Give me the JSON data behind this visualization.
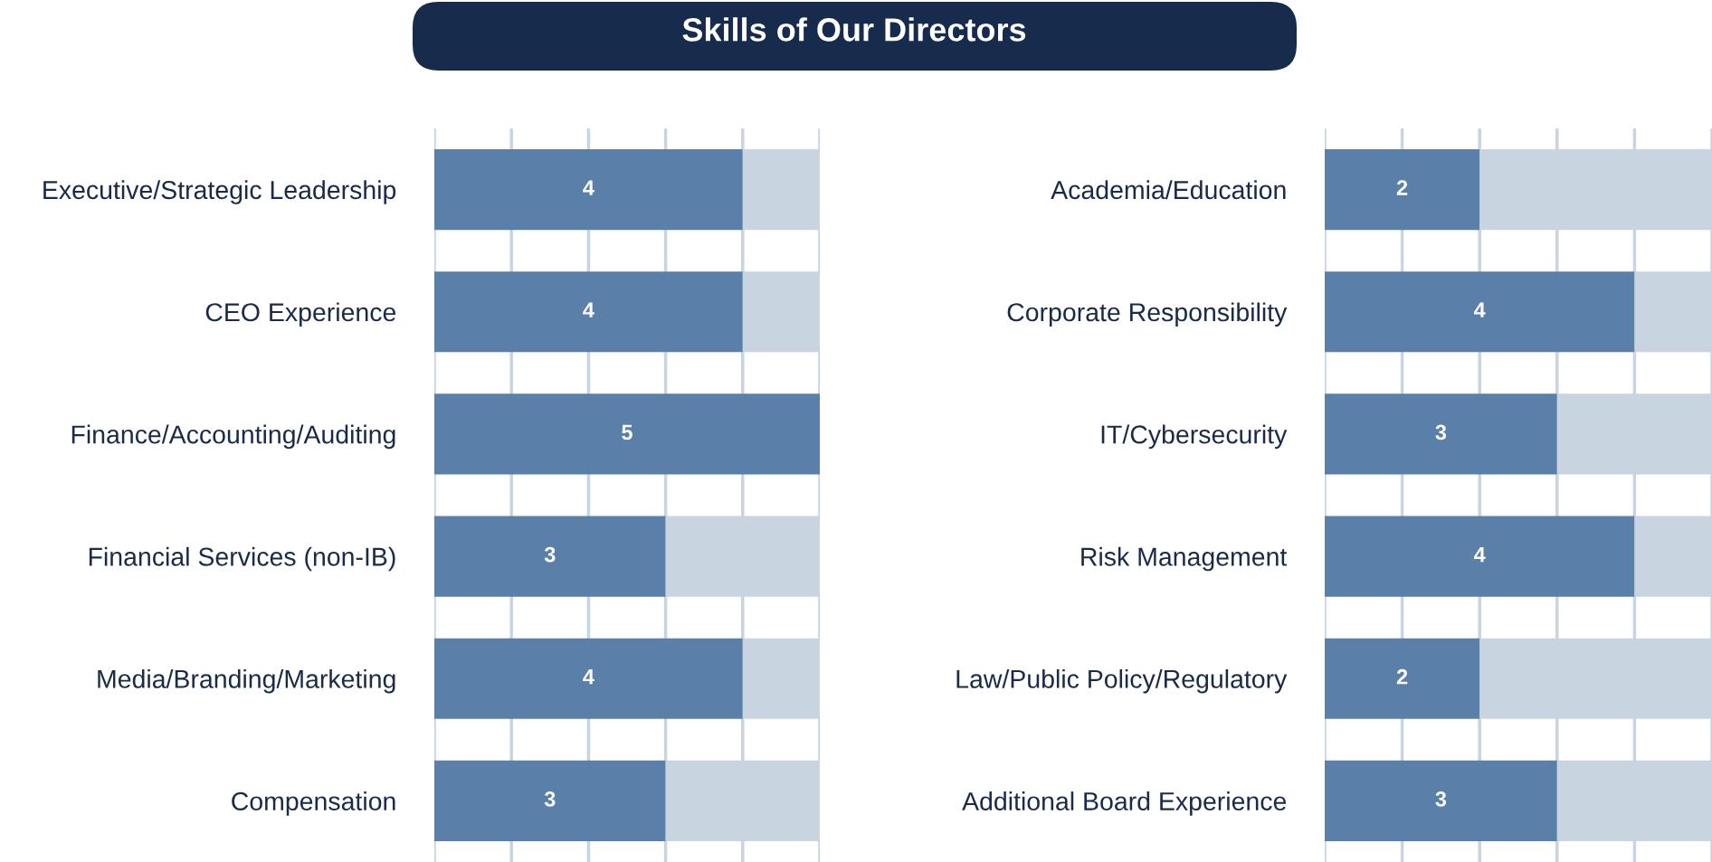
{
  "chart_data": [
    {
      "type": "bar",
      "title": "Skills of Our Directors",
      "orientation": "horizontal",
      "stacked": true,
      "categories": [
        "Executive/Strategic Leadership",
        "CEO Experience",
        "Finance/Accounting/Auditing",
        "Financial Services (non-IB)",
        "Media/Branding/Marketing",
        "Compensation"
      ],
      "series": [
        {
          "color": "#5a80aa",
          "values": [
            4,
            4,
            5,
            3,
            4,
            3
          ],
          "value_labels": [
            "4",
            "4",
            "5",
            "3",
            "4",
            "3"
          ]
        },
        {
          "color": "#c8d4e0",
          "values": [
            1,
            1,
            0,
            2,
            1,
            2
          ]
        }
      ],
      "xlim": [
        0,
        5
      ],
      "xticks": [
        {
          "value": 0,
          "label": null
        },
        {
          "value": 1,
          "label": null
        },
        {
          "value": 2,
          "label": null
        },
        {
          "value": 3,
          "label": null
        },
        {
          "value": 4,
          "label": null
        },
        {
          "value": 5,
          "label": null
        }
      ],
      "grid": "x",
      "tick_labels": "y"
    },
    {
      "type": "bar",
      "orientation": "horizontal",
      "stacked": true,
      "categories": [
        "Academia/Education",
        "Corporate Responsibility",
        "IT/Cybersecurity",
        "Risk Management",
        "Law/Public Policy/Regulatory",
        "Additional Board Experience"
      ],
      "series": [
        {
          "color": "#5a80aa",
          "values": [
            2,
            4,
            3,
            4,
            2,
            3
          ],
          "value_labels": [
            "2",
            "4",
            "3",
            "4",
            "2",
            "3"
          ]
        },
        {
          "color": "#c8d4e0",
          "values": [
            3,
            1,
            2,
            1,
            3,
            2
          ]
        }
      ],
      "xlim": [
        0,
        5
      ],
      "xticks": [
        {
          "value": 0,
          "label": null
        },
        {
          "value": 1,
          "label": null
        },
        {
          "value": 2,
          "label": null
        },
        {
          "value": 3,
          "label": null
        },
        {
          "value": 4,
          "label": null
        },
        {
          "value": 5,
          "label": null
        }
      ],
      "grid": "x",
      "tick_labels": "y"
    }
  ]
}
